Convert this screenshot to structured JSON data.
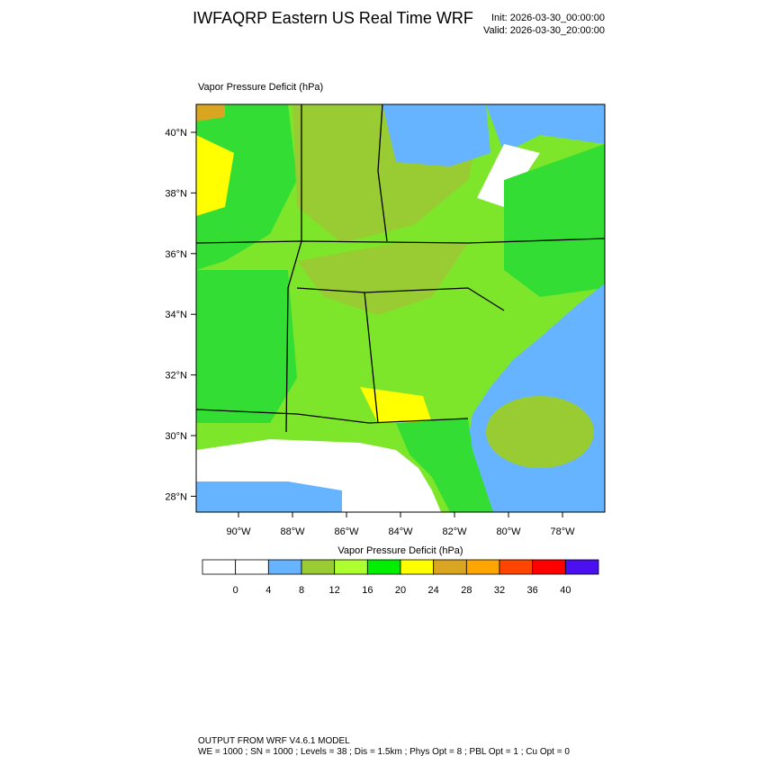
{
  "header": {
    "title": "IWFAQRP Eastern US Real Time WRF",
    "init": "Init: 2026-03-30_00:00:00",
    "valid": "Valid: 2026-03-30_20:00:00"
  },
  "map": {
    "label": "Vapor Pressure Deficit   (hPa)",
    "lat_ticks": [
      {
        "value": 40,
        "label": "40°N"
      },
      {
        "value": 38,
        "label": "38°N"
      },
      {
        "value": 36,
        "label": "36°N"
      },
      {
        "value": 34,
        "label": "34°N"
      },
      {
        "value": 32,
        "label": "32°N"
      },
      {
        "value": 30,
        "label": "30°N"
      },
      {
        "value": 28,
        "label": "28°N"
      }
    ],
    "lon_ticks": [
      {
        "value": -90,
        "label": "90°W"
      },
      {
        "value": -88,
        "label": "88°W"
      },
      {
        "value": -86,
        "label": "86°W"
      },
      {
        "value": -84,
        "label": "84°W"
      },
      {
        "value": -82,
        "label": "82°W"
      },
      {
        "value": -80,
        "label": "80°W"
      },
      {
        "value": -78,
        "label": "78°W"
      }
    ]
  },
  "colorbar": {
    "title": "Vapor Pressure Deficit  (hPa)",
    "colors": [
      "#ffffff",
      "#ffffff",
      "#66b3ff",
      "#99cc33",
      "#adff2f",
      "#00ee00",
      "#ffff00",
      "#daa520",
      "#ffa500",
      "#ff4500",
      "#ff0000",
      "#4b10f0"
    ],
    "ticks": [
      0,
      4,
      8,
      12,
      16,
      20,
      24,
      28,
      32,
      36,
      40
    ]
  },
  "footer": {
    "line1": "OUTPUT FROM WRF V4.6.1 MODEL",
    "line2": "WE = 1000 ; SN = 1000 ; Levels = 38 ; Dis = 1.5km ; Phys Opt = 8 ; PBL Opt = 1 ; Cu Opt = 0"
  }
}
